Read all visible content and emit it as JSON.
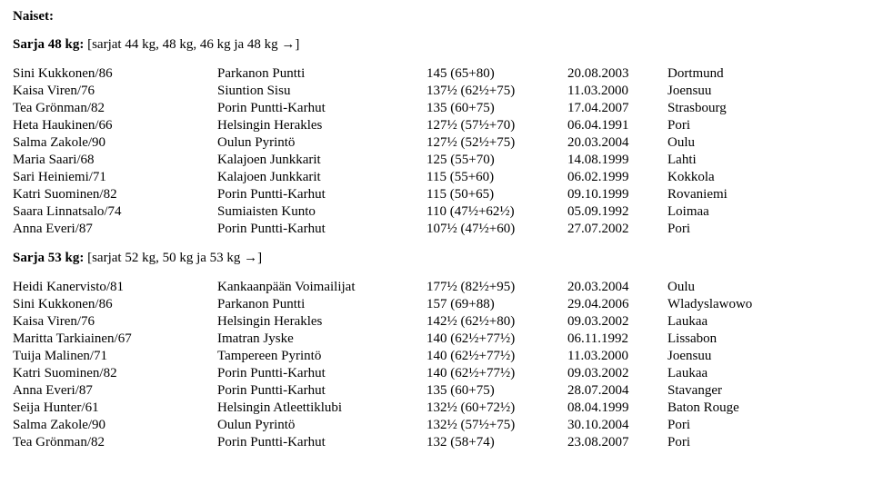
{
  "title": "Naiset:",
  "section1": {
    "heading_strong": "Sarja 48 kg:",
    "heading_rest": " [sarjat 44 kg, 48 kg, 46 kg ja 48 kg →]",
    "rows": [
      {
        "name": "Sini Kukkonen/86",
        "club": "Parkanon Puntti",
        "res": "145 (65+80)",
        "date": "20.08.2003",
        "city": "Dortmund"
      },
      {
        "name": "Kaisa Viren/76",
        "club": "Siuntion Sisu",
        "res": "137½ (62½+75)",
        "date": "11.03.2000",
        "city": "Joensuu"
      },
      {
        "name": "Tea Grönman/82",
        "club": "Porin Puntti-Karhut",
        "res": "135 (60+75)",
        "date": "17.04.2007",
        "city": "Strasbourg"
      },
      {
        "name": "Heta Haukinen/66",
        "club": "Helsingin Herakles",
        "res": "127½ (57½+70)",
        "date": "06.04.1991",
        "city": "Pori"
      },
      {
        "name": "Salma Zakole/90",
        "club": "Oulun Pyrintö",
        "res": "127½ (52½+75)",
        "date": "20.03.2004",
        "city": "Oulu"
      },
      {
        "name": "Maria Saari/68",
        "club": "Kalajoen Junkkarit",
        "res": "125 (55+70)",
        "date": "14.08.1999",
        "city": "Lahti"
      },
      {
        "name": "Sari Heiniemi/71",
        "club": "Kalajoen Junkkarit",
        "res": "115 (55+60)",
        "date": "06.02.1999",
        "city": "Kokkola"
      },
      {
        "name": "Katri Suominen/82",
        "club": "Porin Puntti-Karhut",
        "res": "115 (50+65)",
        "date": "09.10.1999",
        "city": "Rovaniemi"
      },
      {
        "name": "Saara Linnatsalo/74",
        "club": "Sumiaisten Kunto",
        "res": "110 (47½+62½)",
        "date": "05.09.1992",
        "city": "Loimaa"
      },
      {
        "name": "Anna Everi/87",
        "club": "Porin Puntti-Karhut",
        "res": "107½ (47½+60)",
        "date": "27.07.2002",
        "city": "Pori"
      }
    ]
  },
  "section2": {
    "heading_strong": "Sarja 53 kg:",
    "heading_rest": " [sarjat 52 kg, 50 kg ja 53 kg →]",
    "rows": [
      {
        "name": "Heidi Kanervisto/81",
        "club": "Kankaanpään Voimailijat",
        "res": "177½ (82½+95)",
        "date": "20.03.2004",
        "city": "Oulu"
      },
      {
        "name": "Sini Kukkonen/86",
        "club": "Parkanon Puntti",
        "res": "157 (69+88)",
        "date": "29.04.2006",
        "city": "Wladyslawowo"
      },
      {
        "name": "Kaisa Viren/76",
        "club": "Helsingin Herakles",
        "res": "142½ (62½+80)",
        "date": "09.03.2002",
        "city": "Laukaa"
      },
      {
        "name": "Maritta Tarkiainen/67",
        "club": "Imatran Jyske",
        "res": "140 (62½+77½)",
        "date": "06.11.1992",
        "city": "Lissabon"
      },
      {
        "name": "Tuija Malinen/71",
        "club": "Tampereen Pyrintö",
        "res": "140 (62½+77½)",
        "date": "11.03.2000",
        "city": "Joensuu"
      },
      {
        "name": "Katri Suominen/82",
        "club": "Porin Puntti-Karhut",
        "res": "140 (62½+77½)",
        "date": "09.03.2002",
        "city": "Laukaa"
      },
      {
        "name": "Anna Everi/87",
        "club": "Porin Puntti-Karhut",
        "res": "135 (60+75)",
        "date": "28.07.2004",
        "city": "Stavanger"
      },
      {
        "name": "Seija Hunter/61",
        "club": "Helsingin Atleettiklubi",
        "res": "132½ (60+72½)",
        "date": "08.04.1999",
        "city": "Baton Rouge"
      },
      {
        "name": "Salma Zakole/90",
        "club": "Oulun Pyrintö",
        "res": "132½ (57½+75)",
        "date": "30.10.2004",
        "city": "Pori"
      },
      {
        "name": "Tea Grönman/82",
        "club": "Porin Puntti-Karhut",
        "res": "132 (58+74)",
        "date": "23.08.2007",
        "city": "Pori"
      }
    ]
  }
}
